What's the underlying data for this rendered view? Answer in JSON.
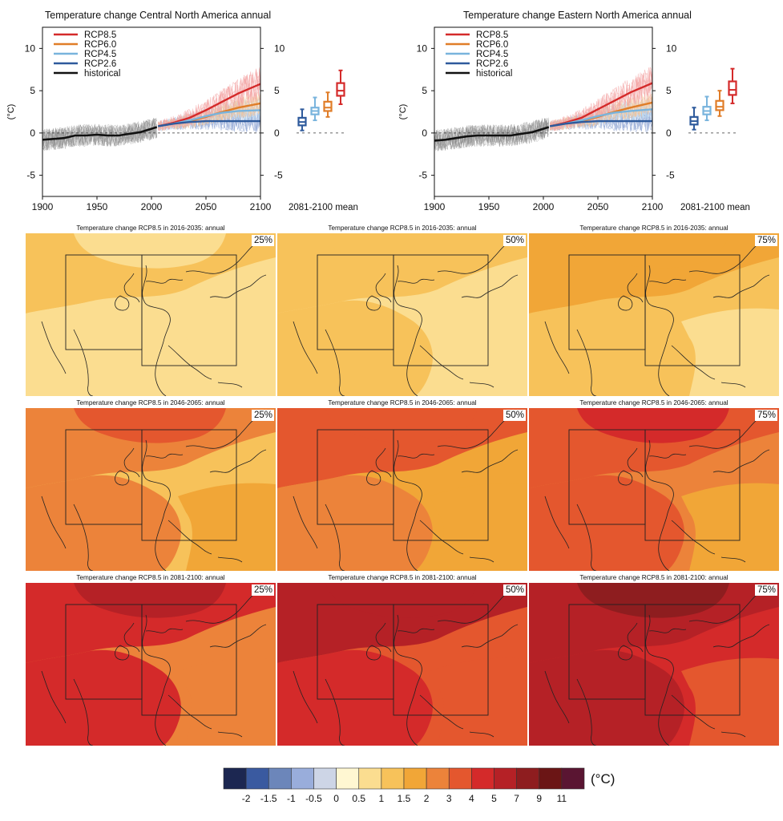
{
  "chart_data": [
    {
      "type": "line",
      "id": "cna",
      "title": "Temperature change Central North America annual",
      "ylabel": "(°C)",
      "xlim": [
        1900,
        2100
      ],
      "ylim": [
        -7.5,
        12.5
      ],
      "x_ticks": [
        1900,
        1950,
        2000,
        2050,
        2100
      ],
      "y_ticks": [
        -5,
        0,
        5,
        10
      ],
      "legend_position": "top-left",
      "series": [
        {
          "name": "RCP8.5",
          "color": "#d42a2a",
          "x": [
            2006,
            2020,
            2035,
            2050,
            2065,
            2080,
            2100
          ],
          "y": [
            0.8,
            1.2,
            1.8,
            2.7,
            3.7,
            4.7,
            5.8
          ]
        },
        {
          "name": "RCP6.0",
          "color": "#e07d28",
          "x": [
            2006,
            2020,
            2035,
            2050,
            2065,
            2080,
            2100
          ],
          "y": [
            0.8,
            1.1,
            1.4,
            1.9,
            2.5,
            3.0,
            3.5
          ]
        },
        {
          "name": "RCP4.5",
          "color": "#79b4dd",
          "x": [
            2006,
            2020,
            2035,
            2050,
            2065,
            2080,
            2100
          ],
          "y": [
            0.8,
            1.1,
            1.5,
            2.0,
            2.4,
            2.6,
            2.7
          ]
        },
        {
          "name": "RCP2.6",
          "color": "#2e5a9c",
          "x": [
            2006,
            2020,
            2035,
            2050,
            2065,
            2080,
            2100
          ],
          "y": [
            0.8,
            1.1,
            1.3,
            1.4,
            1.4,
            1.4,
            1.4
          ]
        },
        {
          "name": "historical",
          "color": "#111111",
          "x": [
            1900,
            1910,
            1920,
            1930,
            1940,
            1950,
            1960,
            1970,
            1980,
            1990,
            2000,
            2005
          ],
          "y": [
            -0.8,
            -0.7,
            -0.6,
            -0.3,
            -0.3,
            -0.2,
            -0.3,
            -0.3,
            -0.1,
            0.1,
            0.5,
            0.7
          ]
        }
      ],
      "box_label": "2081-2100 mean",
      "boxes": [
        {
          "name": "RCP2.6",
          "color": "#2e5a9c",
          "min": 0.3,
          "q1": 0.9,
          "median": 1.3,
          "q3": 1.8,
          "max": 2.8
        },
        {
          "name": "RCP4.5",
          "color": "#79b4dd",
          "min": 1.5,
          "q1": 2.2,
          "median": 2.6,
          "q3": 3.0,
          "max": 4.2
        },
        {
          "name": "RCP6.0",
          "color": "#e07d28",
          "min": 1.9,
          "q1": 2.6,
          "median": 3.0,
          "q3": 3.7,
          "max": 4.8
        },
        {
          "name": "RCP8.5",
          "color": "#d42a2a",
          "min": 3.4,
          "q1": 4.4,
          "median": 5.0,
          "q3": 5.9,
          "max": 7.4
        }
      ]
    },
    {
      "type": "line",
      "id": "ena",
      "title": "Temperature change Eastern North America annual",
      "ylabel": "(°C)",
      "xlim": [
        1900,
        2100
      ],
      "ylim": [
        -7.5,
        12.5
      ],
      "x_ticks": [
        1900,
        1950,
        2000,
        2050,
        2100
      ],
      "y_ticks": [
        -5,
        0,
        5,
        10
      ],
      "legend_position": "top-left",
      "series": [
        {
          "name": "RCP8.5",
          "color": "#d42a2a",
          "x": [
            2006,
            2020,
            2035,
            2050,
            2065,
            2080,
            2100
          ],
          "y": [
            0.8,
            1.2,
            1.8,
            2.8,
            3.8,
            4.8,
            5.9
          ]
        },
        {
          "name": "RCP6.0",
          "color": "#e07d28",
          "x": [
            2006,
            2020,
            2035,
            2050,
            2065,
            2080,
            2100
          ],
          "y": [
            0.8,
            1.1,
            1.4,
            1.9,
            2.5,
            3.0,
            3.6
          ]
        },
        {
          "name": "RCP4.5",
          "color": "#79b4dd",
          "x": [
            2006,
            2020,
            2035,
            2050,
            2065,
            2080,
            2100
          ],
          "y": [
            0.8,
            1.1,
            1.5,
            2.0,
            2.4,
            2.6,
            2.8
          ]
        },
        {
          "name": "RCP2.6",
          "color": "#2e5a9c",
          "x": [
            2006,
            2020,
            2035,
            2050,
            2065,
            2080,
            2100
          ],
          "y": [
            0.8,
            1.1,
            1.3,
            1.4,
            1.4,
            1.4,
            1.4
          ]
        },
        {
          "name": "historical",
          "color": "#111111",
          "x": [
            1900,
            1910,
            1920,
            1930,
            1940,
            1950,
            1960,
            1970,
            1980,
            1990,
            2000,
            2005
          ],
          "y": [
            -0.9,
            -0.8,
            -0.6,
            -0.4,
            -0.3,
            -0.3,
            -0.3,
            -0.3,
            -0.1,
            0.1,
            0.5,
            0.7
          ]
        }
      ],
      "box_label": "2081-2100 mean",
      "boxes": [
        {
          "name": "RCP2.6",
          "color": "#2e5a9c",
          "min": 0.4,
          "q1": 1.0,
          "median": 1.4,
          "q3": 1.9,
          "max": 3.0
        },
        {
          "name": "RCP4.5",
          "color": "#79b4dd",
          "min": 1.5,
          "q1": 2.2,
          "median": 2.6,
          "q3": 3.1,
          "max": 4.3
        },
        {
          "name": "RCP6.0",
          "color": "#e07d28",
          "min": 2.0,
          "q1": 2.7,
          "median": 3.1,
          "q3": 3.8,
          "max": 5.0
        },
        {
          "name": "RCP8.5",
          "color": "#d42a2a",
          "min": 3.5,
          "q1": 4.5,
          "median": 5.1,
          "q3": 6.1,
          "max": 7.6
        }
      ]
    },
    {
      "type": "heatmap",
      "id": "maps",
      "units": "(°C)",
      "colorbar": {
        "colors": [
          "#1c2751",
          "#3a5aa0",
          "#6c86ba",
          "#99addb",
          "#cdd5e6",
          "#fff7d2",
          "#fbdd90",
          "#f7c25a",
          "#f1a637",
          "#ec833a",
          "#e4572e",
          "#d42a2a",
          "#b52126",
          "#8e1d1f",
          "#6b1515",
          "#5a1532"
        ],
        "tick_labels": [
          "-2",
          "-1.5",
          "-1",
          "-0.5",
          "0",
          "0.5",
          "1",
          "1.5",
          "2",
          "3",
          "4",
          "5",
          "7",
          "9",
          "11"
        ]
      },
      "rows": [
        {
          "title": "Temperature change RCP8.5 in 2016-2035: annual",
          "panels": [
            {
              "percentile": "25%",
              "base": "#fbdd90",
              "zones": [
                "#fbdd90",
                "#f7c25a",
                "#fbdd90",
                "#fbdd90"
              ]
            },
            {
              "percentile": "50%",
              "base": "#fbdd90",
              "zones": [
                "#f7c25a",
                "#f7c25a",
                "#f7c25a",
                "#fbdd90"
              ]
            },
            {
              "percentile": "75%",
              "base": "#f7c25a",
              "zones": [
                "#f1a637",
                "#f1a637",
                "#f7c25a",
                "#fbdd90"
              ]
            }
          ]
        },
        {
          "title": "Temperature change RCP8.5 in 2046-2065: annual",
          "panels": [
            {
              "percentile": "25%",
              "base": "#f7c25a",
              "zones": [
                "#e4572e",
                "#ec833a",
                "#ec833a",
                "#f1a637"
              ]
            },
            {
              "percentile": "50%",
              "base": "#f1a637",
              "zones": [
                "#e4572e",
                "#e4572e",
                "#ec833a",
                "#f1a637"
              ]
            },
            {
              "percentile": "75%",
              "base": "#ec833a",
              "zones": [
                "#d42a2a",
                "#e4572e",
                "#e4572e",
                "#f1a637"
              ]
            }
          ]
        },
        {
          "title": "Temperature change RCP8.5 in 2081-2100: annual",
          "panels": [
            {
              "percentile": "25%",
              "base": "#ec833a",
              "zones": [
                "#b52126",
                "#d42a2a",
                "#d42a2a",
                "#ec833a"
              ]
            },
            {
              "percentile": "50%",
              "base": "#e4572e",
              "zones": [
                "#b52126",
                "#b52126",
                "#d42a2a",
                "#e4572e"
              ]
            },
            {
              "percentile": "75%",
              "base": "#d42a2a",
              "zones": [
                "#8e1d1f",
                "#b52126",
                "#b52126",
                "#e4572e"
              ]
            }
          ]
        }
      ]
    }
  ]
}
